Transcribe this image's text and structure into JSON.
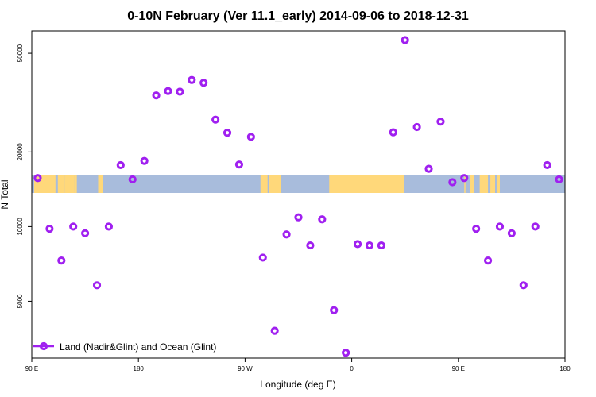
{
  "chart_data": {
    "type": "scatter",
    "title": "0-10N February (Ver 11.1_early)   2014-09-06 to 2018-12-31",
    "xlabel": "Longitude (deg E)",
    "ylabel": "N Total",
    "x_ticks": [
      {
        "value": 90,
        "label": "90 E"
      },
      {
        "value": 180,
        "label": "180"
      },
      {
        "value": 270,
        "label": "90 W"
      },
      {
        "value": 360,
        "label": "0"
      },
      {
        "value": 450,
        "label": "90 E"
      },
      {
        "value": 540,
        "label": "180"
      }
    ],
    "y_scale": "log",
    "y_ticks": [
      {
        "value": 5000,
        "label": "5000"
      },
      {
        "value": 10000,
        "label": "10000"
      },
      {
        "value": 20000,
        "label": "20000"
      },
      {
        "value": 50000,
        "label": "50000"
      }
    ],
    "xlim": [
      90,
      540
    ],
    "ylim": [
      2950,
      61500
    ],
    "series": [
      {
        "name": "Land (Nadir&Glint) and Ocean (Glint)",
        "color": "#a020f0",
        "points": [
          {
            "x": 95,
            "y": 15700
          },
          {
            "x": 105,
            "y": 9800
          },
          {
            "x": 115,
            "y": 7300
          },
          {
            "x": 125,
            "y": 10000
          },
          {
            "x": 135,
            "y": 9400
          },
          {
            "x": 145,
            "y": 5800
          },
          {
            "x": 155,
            "y": 10000
          },
          {
            "x": 165,
            "y": 17700
          },
          {
            "x": 175,
            "y": 15500
          },
          {
            "x": 185,
            "y": 18400
          },
          {
            "x": 195,
            "y": 33800
          },
          {
            "x": 205,
            "y": 35200
          },
          {
            "x": 215,
            "y": 35000
          },
          {
            "x": 225,
            "y": 39000
          },
          {
            "x": 235,
            "y": 38000
          },
          {
            "x": 245,
            "y": 27000
          },
          {
            "x": 255,
            "y": 23900
          },
          {
            "x": 265,
            "y": 17800
          },
          {
            "x": 275,
            "y": 23000
          },
          {
            "x": 285,
            "y": 7500
          },
          {
            "x": 295,
            "y": 3800
          },
          {
            "x": 305,
            "y": 9300
          },
          {
            "x": 315,
            "y": 10900
          },
          {
            "x": 325,
            "y": 8400
          },
          {
            "x": 335,
            "y": 10700
          },
          {
            "x": 345,
            "y": 4600
          },
          {
            "x": 355,
            "y": 3100
          },
          {
            "x": 365,
            "y": 8500
          },
          {
            "x": 375,
            "y": 8400
          },
          {
            "x": 385,
            "y": 8400
          },
          {
            "x": 395,
            "y": 24000
          },
          {
            "x": 405,
            "y": 56500
          },
          {
            "x": 415,
            "y": 25200
          },
          {
            "x": 425,
            "y": 17100
          },
          {
            "x": 435,
            "y": 26500
          },
          {
            "x": 445,
            "y": 15100
          },
          {
            "x": 455,
            "y": 15700
          },
          {
            "x": 465,
            "y": 9800
          },
          {
            "x": 475,
            "y": 7300
          },
          {
            "x": 485,
            "y": 10000
          },
          {
            "x": 495,
            "y": 9400
          },
          {
            "x": 505,
            "y": 5800
          },
          {
            "x": 515,
            "y": 10000
          },
          {
            "x": 525,
            "y": 17700
          },
          {
            "x": 535,
            "y": 15500
          }
        ]
      }
    ],
    "legend_position": "bottom-left",
    "grid": false,
    "background_map": {
      "description_label": "world map strip 0-10N",
      "ocean_color": "#a8bcdc",
      "land_color": "#ffd87a",
      "lat_range": [
        0,
        10
      ]
    }
  }
}
